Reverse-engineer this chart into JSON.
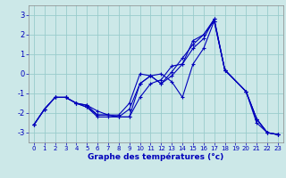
{
  "xlabel": "Graphe des températures (°c)",
  "xlim": [
    -0.5,
    23.5
  ],
  "ylim": [
    -3.5,
    3.5
  ],
  "xticks": [
    0,
    1,
    2,
    3,
    4,
    5,
    6,
    7,
    8,
    9,
    10,
    11,
    12,
    13,
    14,
    15,
    16,
    17,
    18,
    19,
    20,
    21,
    22,
    23
  ],
  "yticks": [
    -3,
    -2,
    -1,
    0,
    1,
    2,
    3
  ],
  "bg_color": "#cce8e8",
  "line_color": "#0000bb",
  "grid_color": "#99cccc",
  "lines": [
    {
      "x": [
        0,
        1,
        2,
        3,
        4,
        5,
        6,
        7,
        8,
        9,
        10,
        11,
        12,
        13,
        14,
        15,
        16,
        17,
        18,
        20,
        21,
        22,
        23
      ],
      "y": [
        -2.6,
        -1.8,
        -1.2,
        -1.2,
        -1.5,
        -1.7,
        -2.2,
        -2.2,
        -2.2,
        -2.2,
        -1.2,
        -0.5,
        -0.3,
        0.4,
        0.5,
        1.7,
        2.0,
        2.8,
        0.2,
        -0.9,
        -2.5,
        -3.0,
        -3.1
      ]
    },
    {
      "x": [
        0,
        1,
        2,
        3,
        4,
        5,
        6,
        7,
        8,
        9,
        10,
        11,
        12,
        13,
        14,
        15,
        16,
        17,
        18,
        20,
        21,
        22,
        23
      ],
      "y": [
        -2.6,
        -1.8,
        -1.2,
        -1.2,
        -1.5,
        -1.7,
        -2.1,
        -2.1,
        -2.2,
        -2.2,
        -0.5,
        -0.1,
        0.0,
        -0.4,
        -1.2,
        0.5,
        1.3,
        2.7,
        0.2,
        -0.9,
        -2.3,
        -3.0,
        -3.1
      ]
    },
    {
      "x": [
        0,
        1,
        2,
        3,
        4,
        5,
        6,
        7,
        8,
        9,
        10,
        11,
        12,
        13,
        14,
        15,
        16,
        17,
        18,
        20,
        21,
        22,
        23
      ],
      "y": [
        -2.6,
        -1.8,
        -1.2,
        -1.2,
        -1.5,
        -1.6,
        -2.1,
        -2.1,
        -2.2,
        -1.8,
        -0.5,
        -0.1,
        -0.5,
        0.1,
        0.8,
        1.5,
        2.0,
        2.7,
        0.2,
        -0.9,
        -2.3,
        -3.0,
        -3.1
      ]
    },
    {
      "x": [
        0,
        1,
        2,
        3,
        4,
        5,
        6,
        7,
        8,
        9,
        10,
        11,
        12,
        13,
        14,
        15,
        16,
        17,
        18,
        20,
        21,
        22,
        23
      ],
      "y": [
        -2.6,
        -1.8,
        -1.2,
        -1.2,
        -1.5,
        -1.6,
        -1.9,
        -2.1,
        -2.1,
        -1.5,
        0.0,
        -0.1,
        -0.5,
        -0.1,
        0.5,
        1.3,
        1.8,
        2.8,
        0.2,
        -0.9,
        -2.3,
        -3.0,
        -3.1
      ]
    }
  ]
}
